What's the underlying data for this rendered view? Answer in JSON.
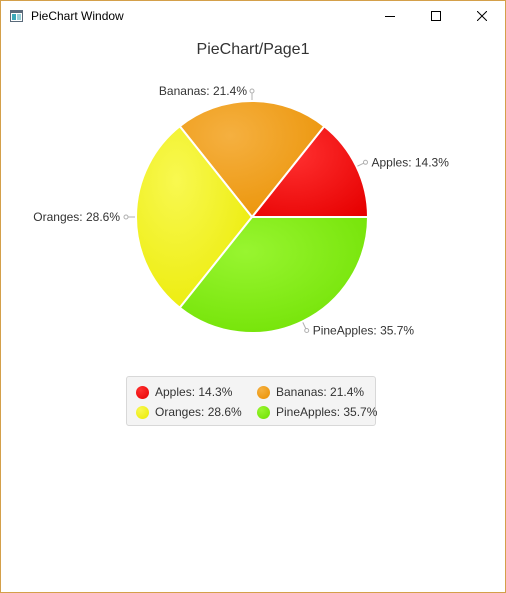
{
  "window": {
    "title": "PieChart Window",
    "minimize_icon": "minimize-icon",
    "maximize_icon": "maximize-icon",
    "close_icon": "close-icon"
  },
  "colors": {
    "Apples": "#e60000",
    "Bananas": "#ea9000",
    "Oranges": "#eaea00",
    "PineApples": "#6ee000"
  },
  "chart_data": {
    "type": "pie",
    "title": "PieChart/Page1",
    "categories": [
      "Apples",
      "Bananas",
      "Oranges",
      "PineApples"
    ],
    "values": [
      14.3,
      21.4,
      28.6,
      35.7
    ],
    "slice_labels": [
      "Apples: 14.3%",
      "Bananas: 21.4%",
      "Oranges: 28.6%",
      "PineApples: 35.7%"
    ],
    "legend": {
      "placement": "bottom",
      "entries": [
        "Apples: 14.3%",
        "Bananas: 21.4%",
        "Oranges: 28.6%",
        "PineApples: 35.7%"
      ]
    }
  }
}
